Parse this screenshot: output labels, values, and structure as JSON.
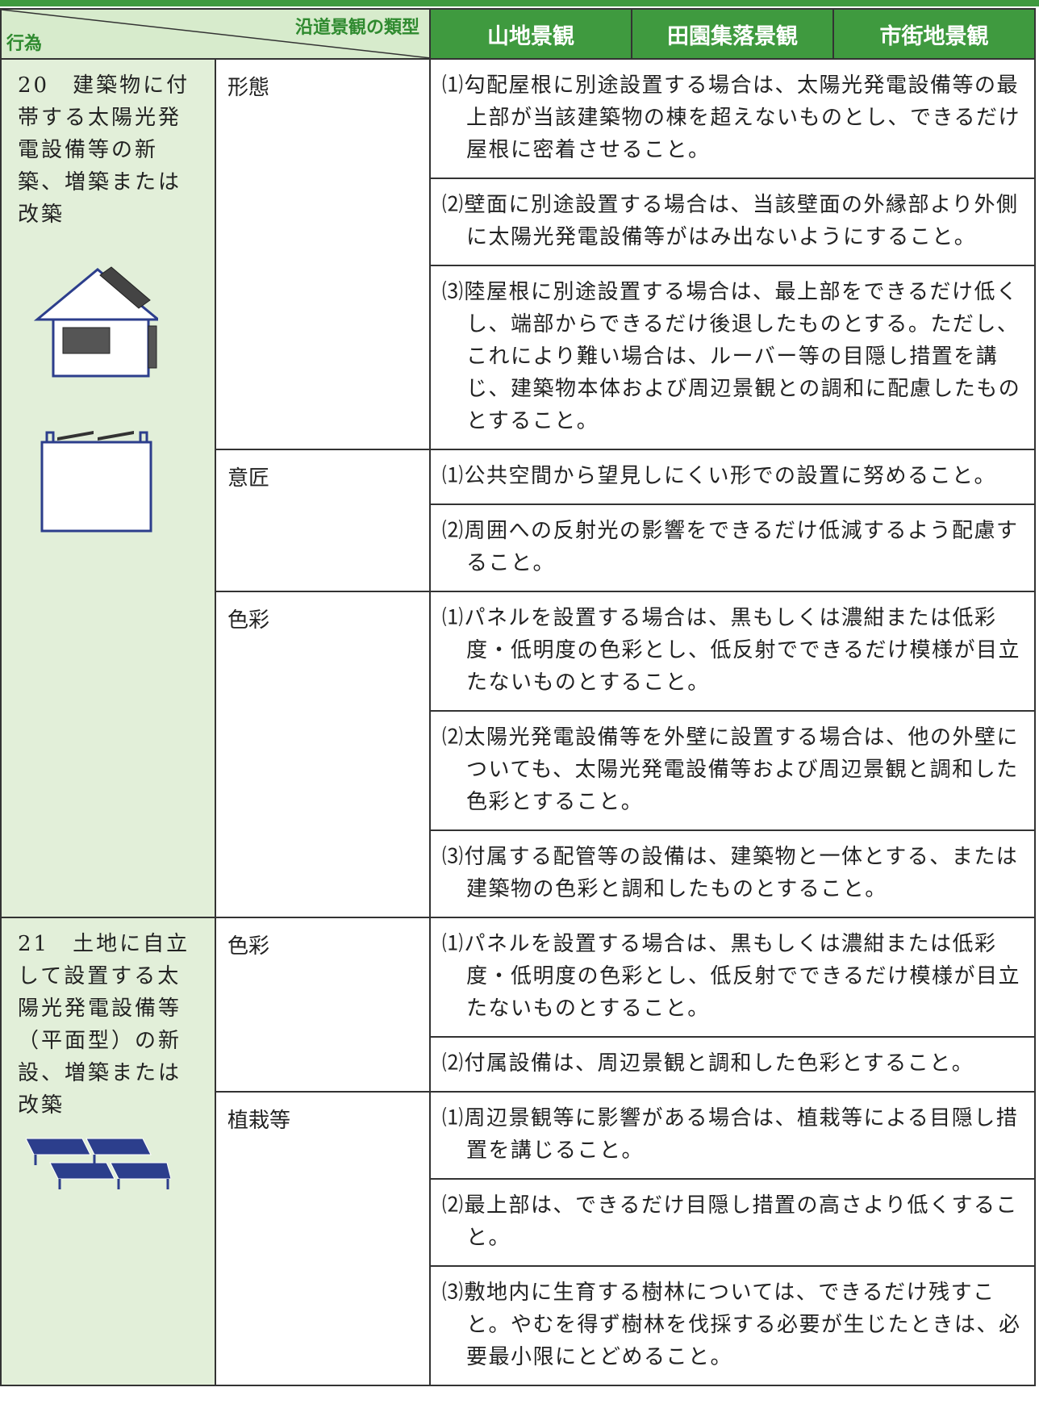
{
  "header": {
    "corner_top": "沿道景観の類型",
    "corner_bottom": "行為",
    "columns": [
      "山地景観",
      "田園集落景観",
      "市街地景観"
    ]
  },
  "rows": [
    {
      "act": "20　建築物に付帯する太陽光発電設備等の新築、増築または改築",
      "groups": [
        {
          "aspect": "形態",
          "items": [
            "⑴勾配屋根に別途設置する場合は、太陽光発電設備等の最上部が当該建築物の棟を超えないものとし、できるだけ屋根に密着させること。",
            "⑵壁面に別途設置する場合は、当該壁面の外縁部より外側に太陽光発電設備等がはみ出ないようにすること。",
            "⑶陸屋根に別途設置する場合は、最上部をできるだけ低くし、端部からできるだけ後退したものとする。ただし、これにより難い場合は、ルーバー等の目隠し措置を講じ、建築物本体および周辺景観との調和に配慮したものとすること。"
          ]
        },
        {
          "aspect": "意匠",
          "items": [
            "⑴公共空間から望見しにくい形での設置に努めること。",
            "⑵周囲への反射光の影響をできるだけ低減するよう配慮すること。"
          ]
        },
        {
          "aspect": "色彩",
          "items": [
            "⑴パネルを設置する場合は、黒もしくは濃紺または低彩度・低明度の色彩とし、低反射でできるだけ模様が目立たないものとすること。",
            "⑵太陽光発電設備等を外壁に設置する場合は、他の外壁についても、太陽光発電設備等および周辺景観と調和した色彩とすること。",
            "⑶付属する配管等の設備は、建築物と一体とする、または建築物の色彩と調和したものとすること。"
          ]
        }
      ]
    },
    {
      "act": "21　土地に自立して設置する太陽光発電設備等（平面型）の新設、増築または改築",
      "groups": [
        {
          "aspect": "色彩",
          "items": [
            "⑴パネルを設置する場合は、黒もしくは濃紺または低彩度・低明度の色彩とし、低反射でできるだけ模様が目立たないものとすること。",
            "⑵付属設備は、周辺景観と調和した色彩とすること。"
          ]
        },
        {
          "aspect": "植栽等",
          "items": [
            "⑴周辺景観等に影響がある場合は、植栽等による目隠し措置を講じること。",
            "⑵最上部は、できるだけ目隠し措置の高さより低くすること。",
            "⑶敷地内に生育する樹林については、できるだけ残すこと。やむを得ず樹林を伐採する必要が生じたときは、必要最小限にとどめること。"
          ]
        }
      ]
    }
  ]
}
